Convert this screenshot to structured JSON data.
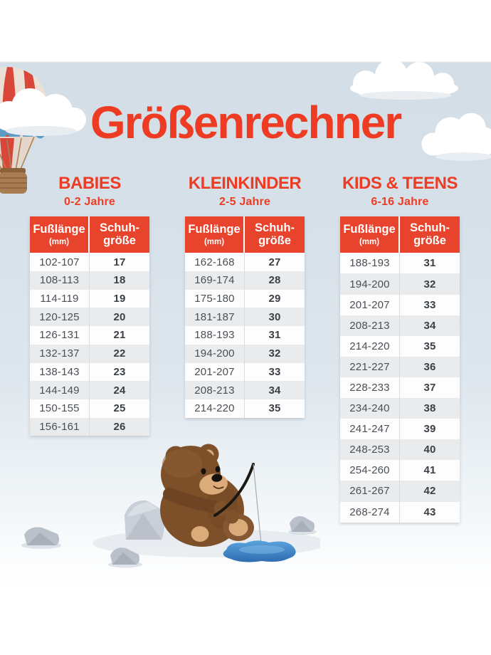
{
  "page": {
    "title": "Größenrechner"
  },
  "colors": {
    "accent_red": "#e8432d",
    "title_red": "#ee3b23",
    "row_alt": "#e9ebec",
    "row_white": "#fdfdfd",
    "cell_text": "#4a4f55",
    "sky": "#d6e0e8",
    "water_blue": "#3f86cc",
    "bear_brown": "#7d5029",
    "rock_gray": "#b9c0ca"
  },
  "chart_data": [
    {
      "type": "table",
      "title": "BABIES",
      "subtitle": "0-2 Jahre",
      "columns": [
        "Fußlänge (mm)",
        "Schuhgröße"
      ],
      "col_header": {
        "c1_main": "Fußlänge",
        "c1_sub": "(mm)",
        "c2_line1": "Schuh-",
        "c2_line2": "größe"
      },
      "rows": [
        [
          "102-107",
          "17"
        ],
        [
          "108-113",
          "18"
        ],
        [
          "114-119",
          "19"
        ],
        [
          "120-125",
          "20"
        ],
        [
          "126-131",
          "21"
        ],
        [
          "132-137",
          "22"
        ],
        [
          "138-143",
          "23"
        ],
        [
          "144-149",
          "24"
        ],
        [
          "150-155",
          "25"
        ],
        [
          "156-161",
          "26"
        ]
      ]
    },
    {
      "type": "table",
      "title": "KLEINKINDER",
      "subtitle": "2-5 Jahre",
      "columns": [
        "Fußlänge (mm)",
        "Schuhgröße"
      ],
      "col_header": {
        "c1_main": "Fußlänge",
        "c1_sub": "(mm)",
        "c2_line1": "Schuh-",
        "c2_line2": "größe"
      },
      "rows": [
        [
          "162-168",
          "27"
        ],
        [
          "169-174",
          "28"
        ],
        [
          "175-180",
          "29"
        ],
        [
          "181-187",
          "30"
        ],
        [
          "188-193",
          "31"
        ],
        [
          "194-200",
          "32"
        ],
        [
          "201-207",
          "33"
        ],
        [
          "208-213",
          "34"
        ],
        [
          "214-220",
          "35"
        ]
      ]
    },
    {
      "type": "table",
      "title": "KIDS & TEENS",
      "subtitle": "6-16 Jahre",
      "columns": [
        "Fußlänge (mm)",
        "Schuhgröße"
      ],
      "col_header": {
        "c1_main": "Fußlänge",
        "c1_sub": "(mm)",
        "c2_line1": "Schuh-",
        "c2_line2": "größe"
      },
      "rows": [
        [
          "188-193",
          "31"
        ],
        [
          "194-200",
          "32"
        ],
        [
          "201-207",
          "33"
        ],
        [
          "208-213",
          "34"
        ],
        [
          "214-220",
          "35"
        ],
        [
          "221-227",
          "36"
        ],
        [
          "228-233",
          "37"
        ],
        [
          "234-240",
          "38"
        ],
        [
          "241-247",
          "39"
        ],
        [
          "248-253",
          "40"
        ],
        [
          "254-260",
          "41"
        ],
        [
          "261-267",
          "42"
        ],
        [
          "268-274",
          "43"
        ]
      ]
    }
  ],
  "decorations": {
    "balloon": "hot-air-balloon-illustration",
    "cloud": "cloud-illustration",
    "bear": "teddy-bear-fishing-illustration",
    "rocks": "rock-illustration",
    "puddle": "water-puddle-illustration"
  }
}
